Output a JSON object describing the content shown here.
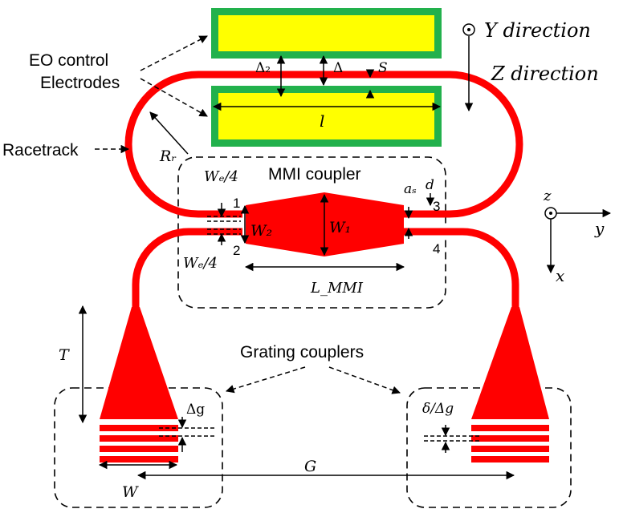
{
  "labels": {
    "eo_line1": "EO control",
    "eo_line2": "Electrodes",
    "racetrack": "Racetrack",
    "y_direction": "Y direction",
    "z_direction": "Z direction",
    "delta2": "Δ₂",
    "delta": "Δ",
    "s": "S",
    "l": "l",
    "rr": "Rᵣ",
    "mmi_coupler": "MMI coupler",
    "we4_top": "Wₑ/4",
    "we4_bottom": "Wₑ/4",
    "port1": "1",
    "port2": "2",
    "port3": "3",
    "port4": "4",
    "w1": "W₁",
    "w2": "W₂",
    "as": "aₛ",
    "d": "d",
    "lmmi": "L_MMI",
    "axis_z": "z",
    "axis_y": "y",
    "axis_x": "x",
    "grating_couplers": "Grating couplers",
    "t": "T",
    "delta_g": "Δg",
    "delta_over_delta_g": "δ/Δg",
    "g": "G",
    "w": "W"
  },
  "colors": {
    "waveguide": "#ff0000",
    "electrode_fill": "#ffff00",
    "electrode_border": "#22b14c",
    "outline": "#000000"
  }
}
